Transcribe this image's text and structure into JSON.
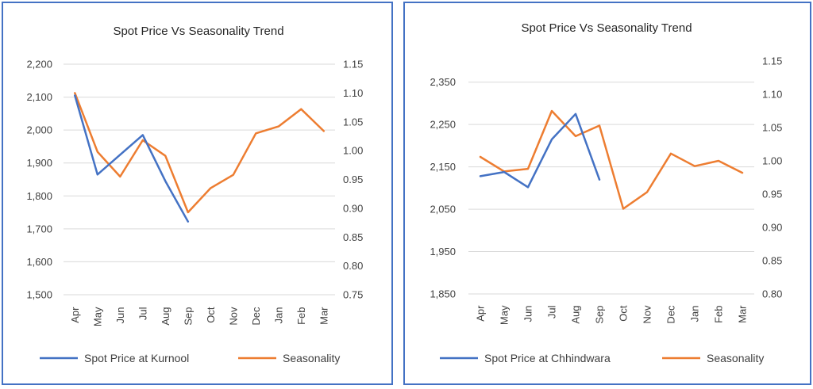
{
  "chart_data": [
    {
      "type": "line",
      "title": "Spot Price Vs Seasonality Trend",
      "categories": [
        "Apr",
        "May",
        "Jun",
        "Jul",
        "Aug",
        "Sep",
        "Oct",
        "Nov",
        "Dec",
        "Jan",
        "Feb",
        "Mar"
      ],
      "y_left_ticks": [
        "1,500",
        "1,600",
        "1,700",
        "1,800",
        "1,900",
        "2,000",
        "2,100",
        "2,200"
      ],
      "y_right_ticks": [
        "0.75",
        "0.80",
        "0.85",
        "0.90",
        "0.95",
        "1.00",
        "1.05",
        "1.10",
        "1.15"
      ],
      "ylim_left": [
        1500,
        2200
      ],
      "ylim_right": [
        0.75,
        1.15
      ],
      "grid": true,
      "legend_position": "bottom",
      "series": [
        {
          "name": "Spot Price at Kurnool",
          "axis": "left",
          "color": "#4472c4",
          "values": [
            2105,
            1865,
            1925,
            1985,
            1845,
            1722,
            null,
            null,
            null,
            null,
            null,
            null
          ]
        },
        {
          "name": "Seasonality",
          "axis": "right",
          "color": "#ed7d31",
          "values": [
            1.1,
            0.998,
            0.955,
            1.018,
            0.991,
            0.893,
            0.935,
            0.958,
            1.03,
            1.042,
            1.072,
            1.034
          ]
        }
      ]
    },
    {
      "type": "line",
      "title": "Spot Price Vs Seasonality Trend",
      "categories": [
        "Apr",
        "May",
        "Jun",
        "Jul",
        "Aug",
        "Sep",
        "Oct",
        "Nov",
        "Dec",
        "Jan",
        "Feb",
        "Mar"
      ],
      "y_left_ticks": [
        "1,850",
        "1,950",
        "2,050",
        "2,150",
        "2,250",
        "2,350"
      ],
      "y_right_ticks": [
        "0.80",
        "0.85",
        "0.90",
        "0.95",
        "1.00",
        "1.05",
        "1.10",
        "1.15"
      ],
      "ylim_left": [
        1850,
        2400
      ],
      "ylim_right": [
        0.8,
        1.15
      ],
      "grid": true,
      "legend_position": "bottom",
      "series": [
        {
          "name": "Spot Price at Chhindwara",
          "axis": "left",
          "color": "#4472c4",
          "values": [
            2128,
            2138,
            2102,
            2215,
            2275,
            2120,
            null,
            null,
            null,
            null,
            null,
            null
          ]
        },
        {
          "name": "Seasonality",
          "axis": "right",
          "color": "#ed7d31",
          "values": [
            1.006,
            0.984,
            0.988,
            1.075,
            1.037,
            1.053,
            0.928,
            0.953,
            1.011,
            0.992,
            1.0,
            0.982
          ]
        }
      ]
    }
  ]
}
